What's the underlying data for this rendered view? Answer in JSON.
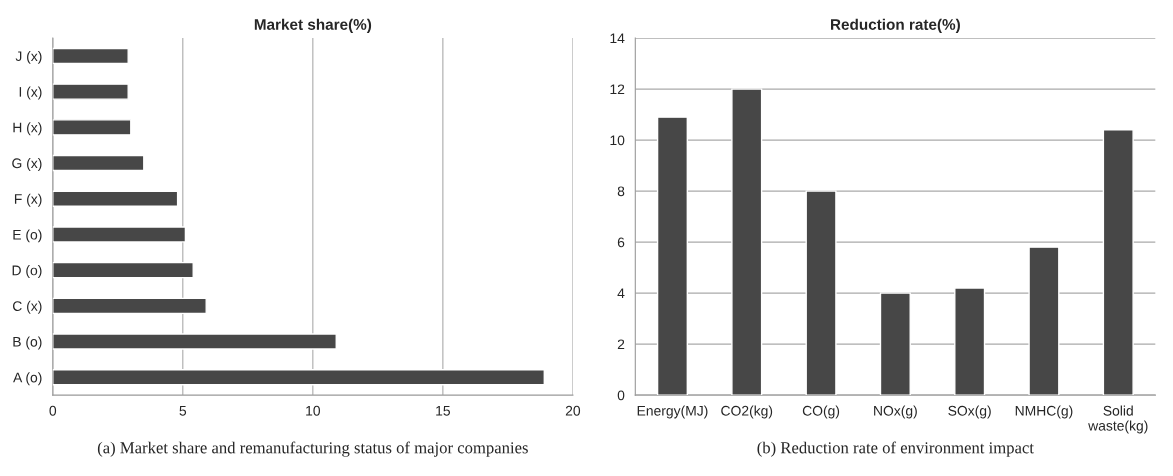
{
  "chart_data": [
    {
      "type": "bar",
      "orientation": "horizontal",
      "title": "Market share(%)",
      "categories": [
        "J (x)",
        "I (x)",
        "H (x)",
        "G (x)",
        "F (x)",
        "E (o)",
        "D (o)",
        "C (x)",
        "B (o)",
        "A (o)"
      ],
      "values": [
        2.9,
        2.9,
        3.0,
        3.5,
        4.8,
        5.1,
        5.4,
        5.9,
        10.9,
        18.9
      ],
      "color": "#474747",
      "xlim": [
        0,
        20
      ],
      "xticks": [
        0,
        5,
        10,
        15,
        20
      ],
      "grid": "x",
      "annotations": [
        "(a) Market share and remanufacturing status of major companies"
      ]
    },
    {
      "type": "bar",
      "title": "Reduction rate(%)",
      "categories": [
        "Energy(MJ)",
        "CO2(kg)",
        "CO(g)",
        "NOx(g)",
        "SOx(g)",
        "NMHC(g)",
        "Solid waste(kg)"
      ],
      "values": [
        10.9,
        12.0,
        8.0,
        4.0,
        4.2,
        5.8,
        10.4
      ],
      "color": "#474747",
      "ylim": [
        0,
        14
      ],
      "yticks": [
        0,
        2,
        4,
        6,
        8,
        10,
        12,
        14
      ],
      "grid": "y",
      "annotations": [
        "(b) Reduction rate of environment impact"
      ]
    }
  ]
}
